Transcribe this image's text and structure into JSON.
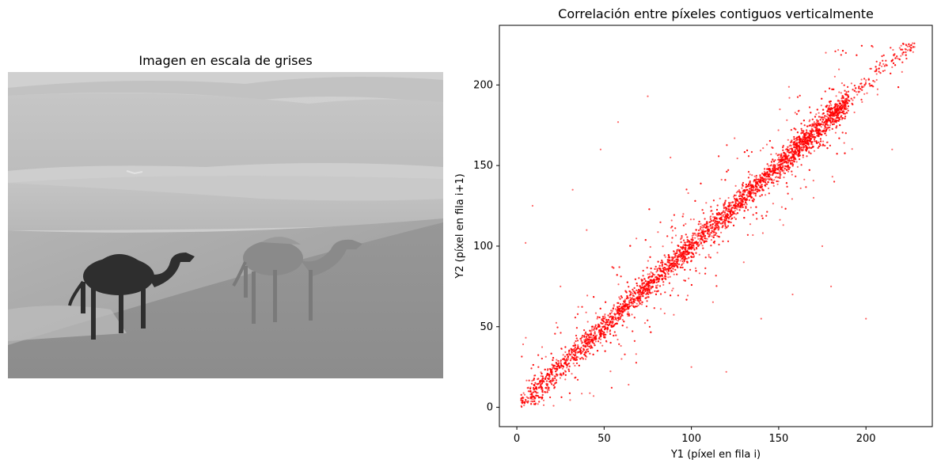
{
  "left_panel": {
    "title": "Imagen en escala de grises",
    "image_content": "grayscale photo of two camels walking across desert sand dunes"
  },
  "colors": {
    "points": "#ff0000",
    "axes": "#000000",
    "background": "#ffffff"
  },
  "chart_data": {
    "type": "scatter",
    "title": "Correlación entre píxeles contiguos verticalmente",
    "xlabel": "Y1 (píxel en fila i)",
    "ylabel": "Y2 (píxel en fila i+1)",
    "xlim": [
      -10,
      238
    ],
    "ylim": [
      -12,
      237
    ],
    "xticks": [
      0,
      50,
      100,
      150,
      200
    ],
    "yticks": [
      0,
      50,
      100,
      150,
      200
    ],
    "grid": false,
    "legend": "none",
    "marker_color": "#ff0000",
    "marker_alpha": 0.6,
    "trend": {
      "relation": "y ≈ x",
      "x_range": [
        0,
        228
      ],
      "y_range": [
        0,
        226
      ]
    },
    "series": [
      {
        "points": [
          [
            3,
            6
          ],
          [
            8,
            10
          ],
          [
            12,
            9
          ],
          [
            15,
            18
          ],
          [
            20,
            22
          ],
          [
            25,
            21
          ],
          [
            30,
            33
          ],
          [
            35,
            31
          ],
          [
            40,
            44
          ],
          [
            45,
            42
          ],
          [
            50,
            53
          ],
          [
            55,
            56
          ],
          [
            60,
            58
          ],
          [
            65,
            68
          ],
          [
            70,
            72
          ],
          [
            75,
            73
          ],
          [
            80,
            84
          ],
          [
            85,
            82
          ],
          [
            90,
            93
          ],
          [
            95,
            96
          ],
          [
            100,
            98
          ],
          [
            105,
            108
          ],
          [
            110,
            112
          ],
          [
            115,
            113
          ],
          [
            120,
            124
          ],
          [
            125,
            122
          ],
          [
            130,
            133
          ],
          [
            135,
            137
          ],
          [
            140,
            138
          ],
          [
            145,
            148
          ],
          [
            150,
            152
          ],
          [
            155,
            153
          ],
          [
            160,
            163
          ],
          [
            165,
            167
          ],
          [
            170,
            168
          ],
          [
            175,
            177
          ],
          [
            180,
            182
          ],
          [
            185,
            183
          ],
          [
            190,
            193
          ],
          [
            195,
            194
          ],
          [
            200,
            203
          ],
          [
            205,
            202
          ],
          [
            210,
            213
          ],
          [
            215,
            211
          ],
          [
            220,
            218
          ],
          [
            225,
            222
          ],
          [
            48,
            160
          ],
          [
            58,
            177
          ],
          [
            32,
            135
          ],
          [
            9,
            125
          ],
          [
            75,
            193
          ],
          [
            5,
            102
          ],
          [
            100,
            25
          ],
          [
            120,
            22
          ],
          [
            158,
            70
          ],
          [
            175,
            100
          ],
          [
            200,
            55
          ],
          [
            140,
            55
          ],
          [
            180,
            75
          ],
          [
            25,
            75
          ],
          [
            40,
            110
          ],
          [
            88,
            155
          ],
          [
            170,
            130
          ],
          [
            215,
            160
          ],
          [
            130,
            90
          ],
          [
            60,
            30
          ]
        ]
      }
    ]
  }
}
